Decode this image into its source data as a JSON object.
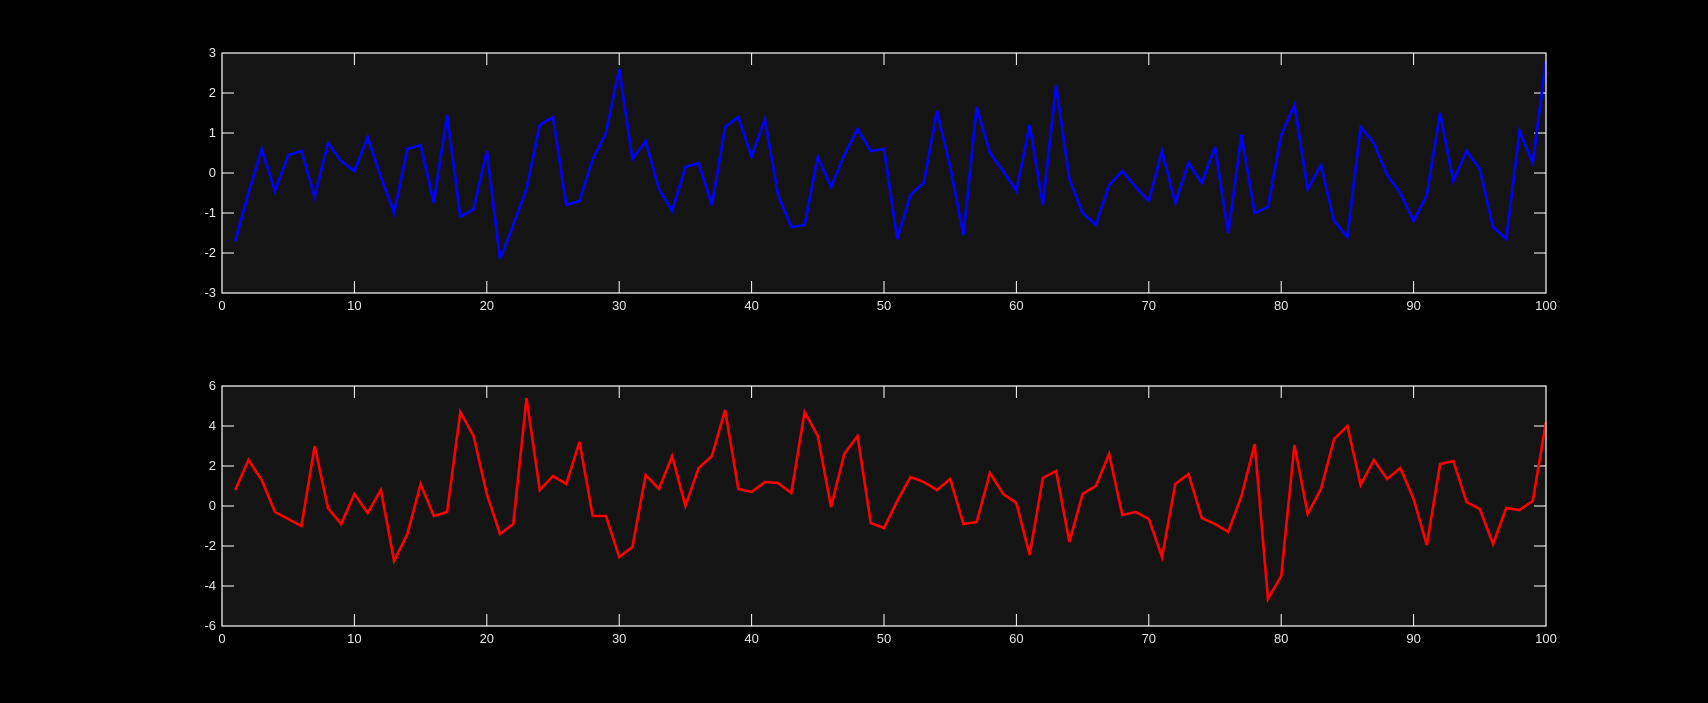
{
  "figure": {
    "background": "#000000",
    "axes_background": "#141414",
    "axes_color": "#ffffff"
  },
  "chart_data": [
    {
      "type": "line",
      "title": "",
      "xlabel": "",
      "ylabel": "",
      "xlim": [
        0,
        100
      ],
      "ylim": [
        -3,
        3
      ],
      "xticks": [
        0,
        10,
        20,
        30,
        40,
        50,
        60,
        70,
        80,
        90,
        100
      ],
      "yticks": [
        -3,
        -2,
        -1,
        0,
        1,
        2,
        3
      ],
      "xtick_labels": [
        "0",
        "10",
        "20",
        "30",
        "40",
        "50",
        "60",
        "70",
        "80",
        "90",
        "100"
      ],
      "ytick_labels": [
        "-3",
        "-2",
        "-1",
        "0",
        "1",
        "2",
        "3"
      ],
      "grid": false,
      "legend": "none",
      "series": [
        {
          "color": "#0000ff",
          "x": [
            1,
            2,
            3,
            4,
            5,
            6,
            7,
            8,
            9,
            10,
            11,
            12,
            13,
            14,
            15,
            16,
            17,
            18,
            19,
            20,
            21,
            22,
            23,
            24,
            25,
            26,
            27,
            28,
            29,
            30,
            31,
            32,
            33,
            34,
            35,
            36,
            37,
            38,
            39,
            40,
            41,
            42,
            43,
            44,
            45,
            46,
            47,
            48,
            49,
            50,
            51,
            52,
            53,
            54,
            55,
            56,
            57,
            58,
            59,
            60,
            61,
            62,
            63,
            64,
            65,
            66,
            67,
            68,
            69,
            70,
            71,
            72,
            73,
            74,
            75,
            76,
            77,
            78,
            79,
            80,
            81,
            82,
            83,
            84,
            85,
            86,
            87,
            88,
            89,
            90,
            91,
            92,
            93,
            94,
            95,
            96,
            97,
            98,
            99,
            100
          ],
          "values": [
            -1.7,
            -0.5,
            0.6,
            -0.45,
            0.45,
            0.55,
            -0.6,
            0.75,
            0.3,
            0.05,
            0.9,
            -0.1,
            -1.0,
            0.6,
            0.7,
            -0.75,
            1.45,
            -1.1,
            -0.9,
            0.55,
            -2.15,
            -1.3,
            -0.4,
            1.2,
            1.4,
            -0.8,
            -0.7,
            0.35,
            1.0,
            2.6,
            0.35,
            0.8,
            -0.4,
            -0.95,
            0.15,
            0.25,
            -0.8,
            1.15,
            1.4,
            0.4,
            1.35,
            -0.55,
            -1.35,
            -1.3,
            0.4,
            -0.35,
            0.45,
            1.1,
            0.55,
            0.6,
            -1.65,
            -0.55,
            -0.25,
            1.55,
            0.15,
            -1.55,
            1.65,
            0.5,
            0.05,
            -0.45,
            1.2,
            -0.8,
            2.2,
            -0.15,
            -1.0,
            -1.3,
            -0.3,
            0.05,
            -0.35,
            -0.7,
            0.55,
            -0.75,
            0.25,
            -0.25,
            0.65,
            -1.5,
            0.95,
            -1.0,
            -0.85,
            0.95,
            1.7,
            -0.4,
            0.2,
            -1.2,
            -1.6,
            1.15,
            0.75,
            -0.05,
            -0.5,
            -1.2,
            -0.55,
            1.5,
            -0.2,
            0.55,
            0.1,
            -1.35,
            -1.65,
            1.05,
            0.25,
            2.8
          ]
        }
      ]
    },
    {
      "type": "line",
      "title": "",
      "xlabel": "",
      "ylabel": "",
      "xlim": [
        0,
        100
      ],
      "ylim": [
        -6,
        6
      ],
      "xticks": [
        0,
        10,
        20,
        30,
        40,
        50,
        60,
        70,
        80,
        90,
        100
      ],
      "yticks": [
        -6,
        -4,
        -2,
        0,
        2,
        4,
        6
      ],
      "xtick_labels": [
        "0",
        "10",
        "20",
        "30",
        "40",
        "50",
        "60",
        "70",
        "80",
        "90",
        "100"
      ],
      "ytick_labels": [
        "-6",
        "-4",
        "-2",
        "0",
        "2",
        "4",
        "6"
      ],
      "grid": false,
      "legend": "none",
      "series": [
        {
          "color": "#ff0000",
          "x": [
            1,
            2,
            3,
            4,
            5,
            6,
            7,
            8,
            9,
            10,
            11,
            12,
            13,
            14,
            15,
            16,
            17,
            18,
            19,
            20,
            21,
            22,
            23,
            24,
            25,
            26,
            27,
            28,
            29,
            30,
            31,
            32,
            33,
            34,
            35,
            36,
            37,
            38,
            39,
            40,
            41,
            42,
            43,
            44,
            45,
            46,
            47,
            48,
            49,
            50,
            51,
            52,
            53,
            54,
            55,
            56,
            57,
            58,
            59,
            60,
            61,
            62,
            63,
            64,
            65,
            66,
            67,
            68,
            69,
            70,
            71,
            72,
            73,
            74,
            75,
            76,
            77,
            78,
            79,
            80,
            81,
            82,
            83,
            84,
            85,
            86,
            87,
            88,
            89,
            90,
            91,
            92,
            93,
            94,
            95,
            96,
            97,
            98,
            99,
            100
          ],
          "values": [
            0.8,
            2.3,
            1.3,
            -0.3,
            -0.65,
            -1.0,
            3.0,
            -0.1,
            -0.9,
            0.6,
            -0.35,
            0.8,
            -2.75,
            -1.4,
            1.1,
            -0.5,
            -0.3,
            4.7,
            3.5,
            0.6,
            -1.4,
            -0.9,
            5.4,
            0.8,
            1.5,
            1.1,
            3.2,
            -0.5,
            -0.5,
            -2.55,
            -2.05,
            1.55,
            0.85,
            2.5,
            0.0,
            1.9,
            2.5,
            4.8,
            0.85,
            0.7,
            1.2,
            1.15,
            0.65,
            4.7,
            3.5,
            -0.05,
            2.6,
            3.5,
            -0.85,
            -1.1,
            0.25,
            1.45,
            1.2,
            0.8,
            1.35,
            -0.9,
            -0.8,
            1.65,
            0.6,
            0.15,
            -2.45,
            1.4,
            1.75,
            -1.8,
            0.6,
            1.0,
            2.6,
            -0.45,
            -0.3,
            -0.65,
            -2.55,
            1.1,
            1.6,
            -0.6,
            -0.9,
            -1.3,
            0.5,
            3.1,
            -4.65,
            -3.5,
            3.05,
            -0.4,
            0.85,
            3.35,
            4.0,
            1.05,
            2.3,
            1.35,
            1.9,
            0.35,
            -1.95,
            2.1,
            2.25,
            0.2,
            -0.15,
            -1.9,
            -0.1,
            -0.2,
            0.25,
            4.2
          ]
        }
      ]
    }
  ]
}
